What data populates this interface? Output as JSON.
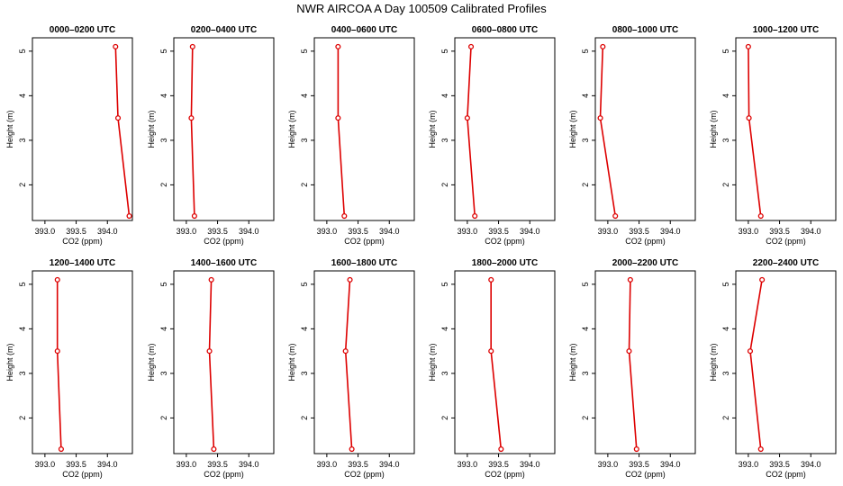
{
  "figure": {
    "title": "NWR AIRCOA A  Day 100509  Calibrated Profiles",
    "line_color": "#dd0000",
    "marker_color": "#dd0000"
  },
  "chart_data": {
    "type": "line",
    "xlabel": "CO2 (ppm)",
    "ylabel": "Height (m)",
    "xlim": [
      392.8,
      394.4
    ],
    "ylim": [
      1.2,
      5.3
    ],
    "x_ticks": [
      "393.0",
      "393.5",
      "394.0"
    ],
    "x_tick_values": [
      393.0,
      393.5,
      394.0
    ],
    "y_ticks": [
      "2",
      "3",
      "4",
      "5"
    ],
    "y_tick_values": [
      2,
      3,
      4,
      5
    ],
    "heights": [
      5.1,
      3.5,
      1.3
    ],
    "panels": [
      {
        "title": "0000–0200 UTC",
        "co2": [
          394.13,
          394.17,
          394.35
        ]
      },
      {
        "title": "0200–0400 UTC",
        "co2": [
          393.1,
          393.08,
          393.13
        ]
      },
      {
        "title": "0400–0600 UTC",
        "co2": [
          393.18,
          393.18,
          393.28
        ]
      },
      {
        "title": "0600–0800 UTC",
        "co2": [
          393.06,
          393.0,
          393.12
        ]
      },
      {
        "title": "0800–1000 UTC",
        "co2": [
          392.92,
          392.88,
          393.12
        ]
      },
      {
        "title": "1000–1200 UTC",
        "co2": [
          393.0,
          393.01,
          393.2
        ]
      },
      {
        "title": "1200–1400 UTC",
        "co2": [
          393.2,
          393.2,
          393.26
        ]
      },
      {
        "title": "1400–1600 UTC",
        "co2": [
          393.4,
          393.37,
          393.44
        ]
      },
      {
        "title": "1600–1800 UTC",
        "co2": [
          393.37,
          393.3,
          393.4
        ]
      },
      {
        "title": "1800–2000 UTC",
        "co2": [
          393.38,
          393.38,
          393.54
        ]
      },
      {
        "title": "2000–2200 UTC",
        "co2": [
          393.36,
          393.34,
          393.46
        ]
      },
      {
        "title": "2200–2400 UTC",
        "co2": [
          393.22,
          393.03,
          393.2
        ]
      }
    ]
  }
}
